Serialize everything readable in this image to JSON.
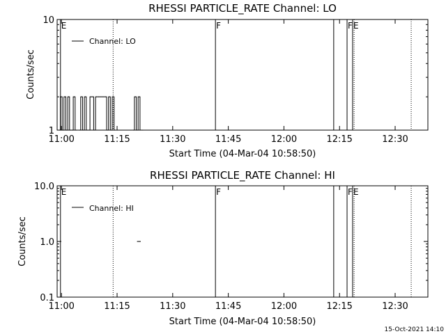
{
  "chart_data": [
    {
      "type": "line",
      "title": "RHESSI PARTICLE_RATE Channel: LO",
      "xlabel": "Start Time (04-Mar-04 10:58:50)",
      "ylabel": "Counts/sec",
      "yscale": "log",
      "ylim": [
        1,
        10
      ],
      "xlim_minutes_after_start": [
        0,
        100
      ],
      "x_tick_labels": [
        "11:00",
        "11:15",
        "11:30",
        "11:45",
        "12:00",
        "12:15",
        "12:30"
      ],
      "x_tick_minutes_after_start": [
        1.17,
        16.17,
        31.17,
        46.17,
        61.17,
        76.17,
        91.17
      ],
      "y_tick_labels": [
        "1",
        "10"
      ],
      "y_tick_values": [
        1,
        10
      ],
      "legend": {
        "entries": [
          "Channel: LO"
        ],
        "placement": "top-left"
      },
      "series": [
        {
          "name": "Channel: LO",
          "x": [
            0.6,
            1.1,
            1.6,
            2.1,
            2.6,
            3.1,
            3.6,
            4.1,
            4.6,
            5.1,
            6.1,
            6.6,
            7.1,
            7.6,
            8.1,
            8.6,
            9.1,
            9.6,
            10.1,
            10.6,
            11.1,
            11.6,
            12.1,
            12.6,
            13.1,
            13.6,
            14.1,
            14.6,
            15.1,
            15.6,
            20.6,
            21.1,
            21.6,
            22.1,
            22.6,
            23.1
          ],
          "y": [
            1,
            2,
            1,
            2,
            1,
            2,
            1,
            1,
            2,
            1,
            1,
            2,
            1,
            2,
            1,
            1,
            2,
            2,
            1,
            2,
            2,
            2,
            2,
            2,
            2,
            1,
            2,
            1,
            2,
            1,
            1,
            2,
            1,
            2,
            1,
            1
          ]
        }
      ],
      "vertical_lines": [
        {
          "minute": 15.1,
          "style": "dotted",
          "label": ""
        },
        {
          "minute": 0.9,
          "style": "solid",
          "label": "E"
        },
        {
          "minute": 42.7,
          "style": "solid",
          "label": "F"
        },
        {
          "minute": 74.6,
          "style": "solid",
          "label": ""
        },
        {
          "minute": 78.2,
          "style": "solid",
          "label": "F"
        },
        {
          "minute": 79.7,
          "style": "solid",
          "label": "E"
        },
        {
          "minute": 80.1,
          "style": "dotted",
          "label": ""
        },
        {
          "minute": 95.5,
          "style": "dotted",
          "label": ""
        }
      ]
    },
    {
      "type": "line",
      "title": "RHESSI PARTICLE_RATE Channel: HI",
      "xlabel": "Start Time (04-Mar-04 10:58:50)",
      "ylabel": "Counts/sec",
      "yscale": "log",
      "ylim": [
        0.1,
        10
      ],
      "xlim_minutes_after_start": [
        0,
        100
      ],
      "x_tick_labels": [
        "11:00",
        "11:15",
        "11:30",
        "11:45",
        "12:00",
        "12:15",
        "12:30"
      ],
      "x_tick_minutes_after_start": [
        1.17,
        16.17,
        31.17,
        46.17,
        61.17,
        76.17,
        91.17
      ],
      "y_tick_labels": [
        "0.1",
        "1.0",
        "10.0"
      ],
      "y_tick_values": [
        0.1,
        1,
        10
      ],
      "legend": {
        "entries": [
          "Channel: HI"
        ],
        "placement": "top-left"
      },
      "series": [
        {
          "name": "Channel: HI",
          "x": [
            21.8,
            22.3
          ],
          "y": [
            1,
            1
          ]
        }
      ],
      "vertical_lines": [
        {
          "minute": 15.1,
          "style": "dotted",
          "label": ""
        },
        {
          "minute": 0.9,
          "style": "solid",
          "label": "E"
        },
        {
          "minute": 42.7,
          "style": "solid",
          "label": "F"
        },
        {
          "minute": 74.6,
          "style": "solid",
          "label": ""
        },
        {
          "minute": 78.2,
          "style": "solid",
          "label": "F"
        },
        {
          "minute": 79.7,
          "style": "solid",
          "label": "E"
        },
        {
          "minute": 80.1,
          "style": "dotted",
          "label": ""
        },
        {
          "minute": 95.5,
          "style": "dotted",
          "label": ""
        }
      ]
    }
  ],
  "footer": {
    "timestamp": "15-Oct-2021 14:10"
  }
}
